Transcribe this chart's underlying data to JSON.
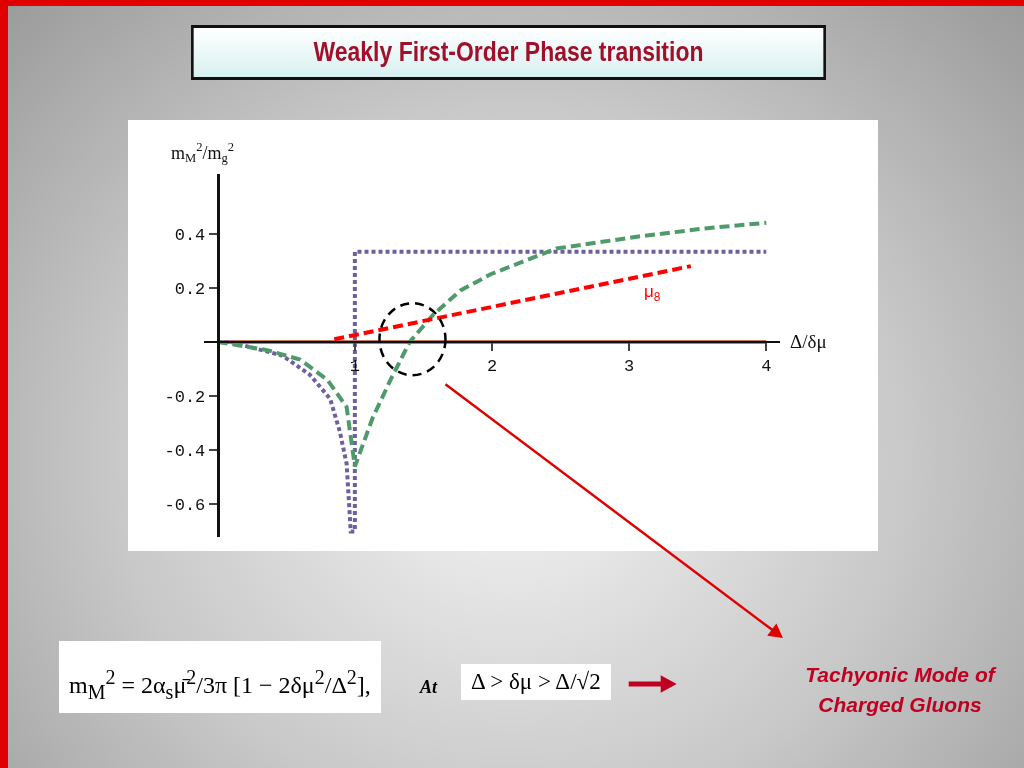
{
  "chart_data": {
    "type": "line",
    "title": "Weakly First-Order Phase transition",
    "xlabel": "Δ/δμ",
    "ylabel": "m$_{M}$$^{2}$/m$_{g}$$^{2}$",
    "xlim": [
      -0.1,
      4.1
    ],
    "ylim": [
      -0.72,
      0.62
    ],
    "xticks": [
      1,
      2,
      3,
      4
    ],
    "yticks": [
      -0.6,
      -0.4,
      -0.2,
      0.2,
      0.4
    ],
    "series": [
      {
        "color": "#c27a5c",
        "line_style": "solid",
        "x": [
          0,
          4
        ],
        "values": [
          0,
          0
        ]
      },
      {
        "color": "#6e5f9e",
        "line_style": "dotted",
        "x": [
          0,
          0.09,
          0.47,
          0.67,
          0.82,
          0.89,
          0.94,
          0.97,
          1,
          1,
          4
        ],
        "values": [
          0,
          0,
          -0.05,
          -0.12,
          -0.21,
          -0.33,
          -0.45,
          -0.7,
          -0.7,
          0.333,
          0.333
        ]
      },
      {
        "color": "#4f9a6a",
        "line_style": "dashed",
        "x": [
          0,
          0.36,
          0.6,
          0.8,
          0.94,
          1.0,
          1.13,
          1.26,
          1.4,
          1.57,
          1.77,
          1.99,
          2.47,
          3.08,
          3.57,
          4.0
        ],
        "values": [
          0,
          -0.03,
          -0.065,
          -0.14,
          -0.24,
          -0.46,
          -0.28,
          -0.14,
          0,
          0.1,
          0.19,
          0.25,
          0.345,
          0.39,
          0.42,
          0.44
        ]
      },
      {
        "name": "μ$_{8}$",
        "color": "#ff0000",
        "line_style": "dashed",
        "x": [
          0.85,
          3.45
        ],
        "values": [
          0.01,
          0.28
        ]
      }
    ],
    "annotations": [
      "m$_{M}$$^{2}$ = 2α$_{s}$μ̄$^{2}$/3π [1 − 2δμ$^{2}$/Δ$^{2}$],",
      "At",
      "Δ > δμ > Δ/√2",
      "Tachyonic Mode of Charged Gluons"
    ]
  }
}
